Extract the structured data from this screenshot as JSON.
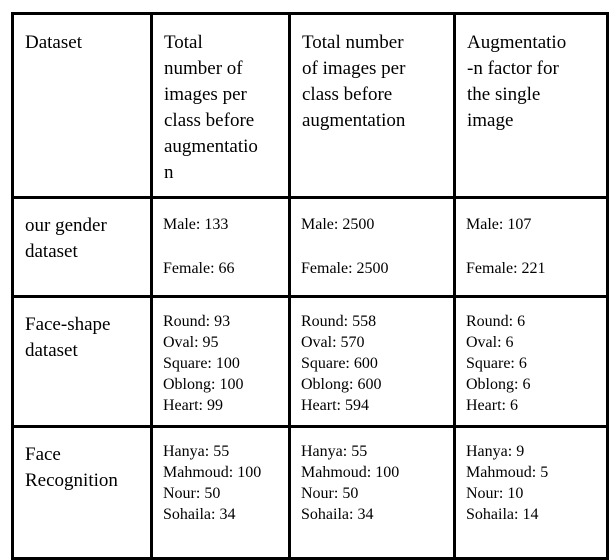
{
  "table": {
    "title_semantic": "dataset augmentation summary table",
    "colors": {
      "border": "#000000",
      "text": "#000000",
      "background": "#ffffff"
    },
    "columns": [
      {
        "header_lines": [
          "Dataset"
        ]
      },
      {
        "header_lines": [
          "Total",
          "number of",
          "images per",
          "class before",
          "augmentatio",
          "n"
        ]
      },
      {
        "header_lines": [
          "Total number",
          "of images per",
          "class before",
          "augmentation"
        ]
      },
      {
        "header_lines": [
          "Augmentatio",
          "-n factor for",
          "the single",
          "image"
        ]
      }
    ],
    "rows": [
      {
        "label_lines": [
          "our gender",
          "dataset"
        ],
        "cells": [
          [
            "Male: 133",
            "Female: 66"
          ],
          [
            "Male: 2500",
            "Female: 2500"
          ],
          [
            "Male: 107",
            "Female: 221"
          ]
        ]
      },
      {
        "label_lines": [
          "Face-shape",
          "dataset"
        ],
        "cells": [
          [
            "Round: 93",
            "Oval: 95",
            "Square: 100",
            "Oblong: 100",
            "Heart: 99"
          ],
          [
            "Round: 558",
            "Oval: 570",
            "Square: 600",
            "Oblong: 600",
            "Heart: 594"
          ],
          [
            "Round: 6",
            "Oval: 6",
            "Square: 6",
            "Oblong: 6",
            "Heart: 6"
          ]
        ]
      },
      {
        "label_lines": [
          "Face",
          "Recognition"
        ],
        "cells": [
          [
            "Hanya: 55",
            "Mahmoud: 100",
            "Nour: 50",
            "Sohaila: 34"
          ],
          [
            "Hanya: 55",
            "Mahmoud: 100",
            "Nour: 50",
            "Sohaila: 34"
          ],
          [
            "Hanya: 9",
            "Mahmoud: 5",
            "Nour: 10",
            "Sohaila: 14"
          ]
        ]
      }
    ]
  }
}
